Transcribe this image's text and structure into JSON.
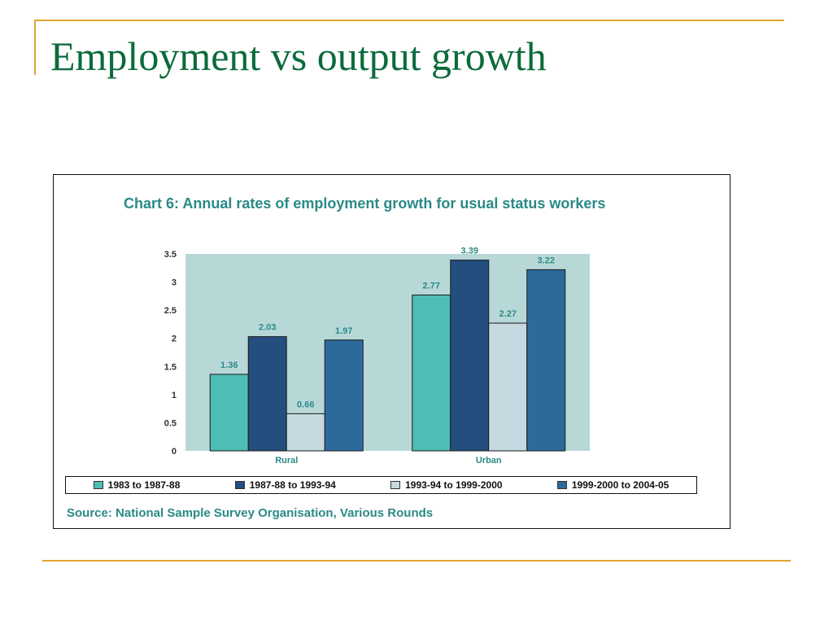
{
  "slide": {
    "title": "Employment vs output growth"
  },
  "chart_data": {
    "type": "bar",
    "title": "Chart 6: Annual rates of employment growth for usual status workers",
    "categories": [
      "Rural",
      "Urban"
    ],
    "series": [
      {
        "name": "1983 to 1987-88",
        "values": [
          1.36,
          2.77
        ],
        "color": "#4dbdb5"
      },
      {
        "name": "1987-88 to 1993-94",
        "values": [
          2.03,
          3.39
        ],
        "color": "#234e7e"
      },
      {
        "name": "1993-94 to 1999-2000",
        "values": [
          0.66,
          2.27
        ],
        "color": "#c6d9e1"
      },
      {
        "name": "1999-2000 to 2004-05",
        "values": [
          1.97,
          3.22
        ],
        "color": "#2c6a9b"
      }
    ],
    "data_labels": [
      [
        "1.36",
        "2.77"
      ],
      [
        "2.03",
        "3.39"
      ],
      [
        "0.66",
        "2.27"
      ],
      [
        "1.97",
        "3.22"
      ]
    ],
    "yticks": [
      "0",
      "0.5",
      "1",
      "1.5",
      "2",
      "2.5",
      "3",
      "3.5"
    ],
    "ylim": [
      0,
      3.5
    ],
    "grid": false,
    "legend_position": "bottom",
    "plot_background": "#b8d8d8",
    "source": "Source: National Sample Survey Organisation, Various Rounds"
  },
  "colors": {
    "accent_line": "#e0a630",
    "title_green": "#0b6b3a",
    "chart_text": "#2a8a86"
  }
}
